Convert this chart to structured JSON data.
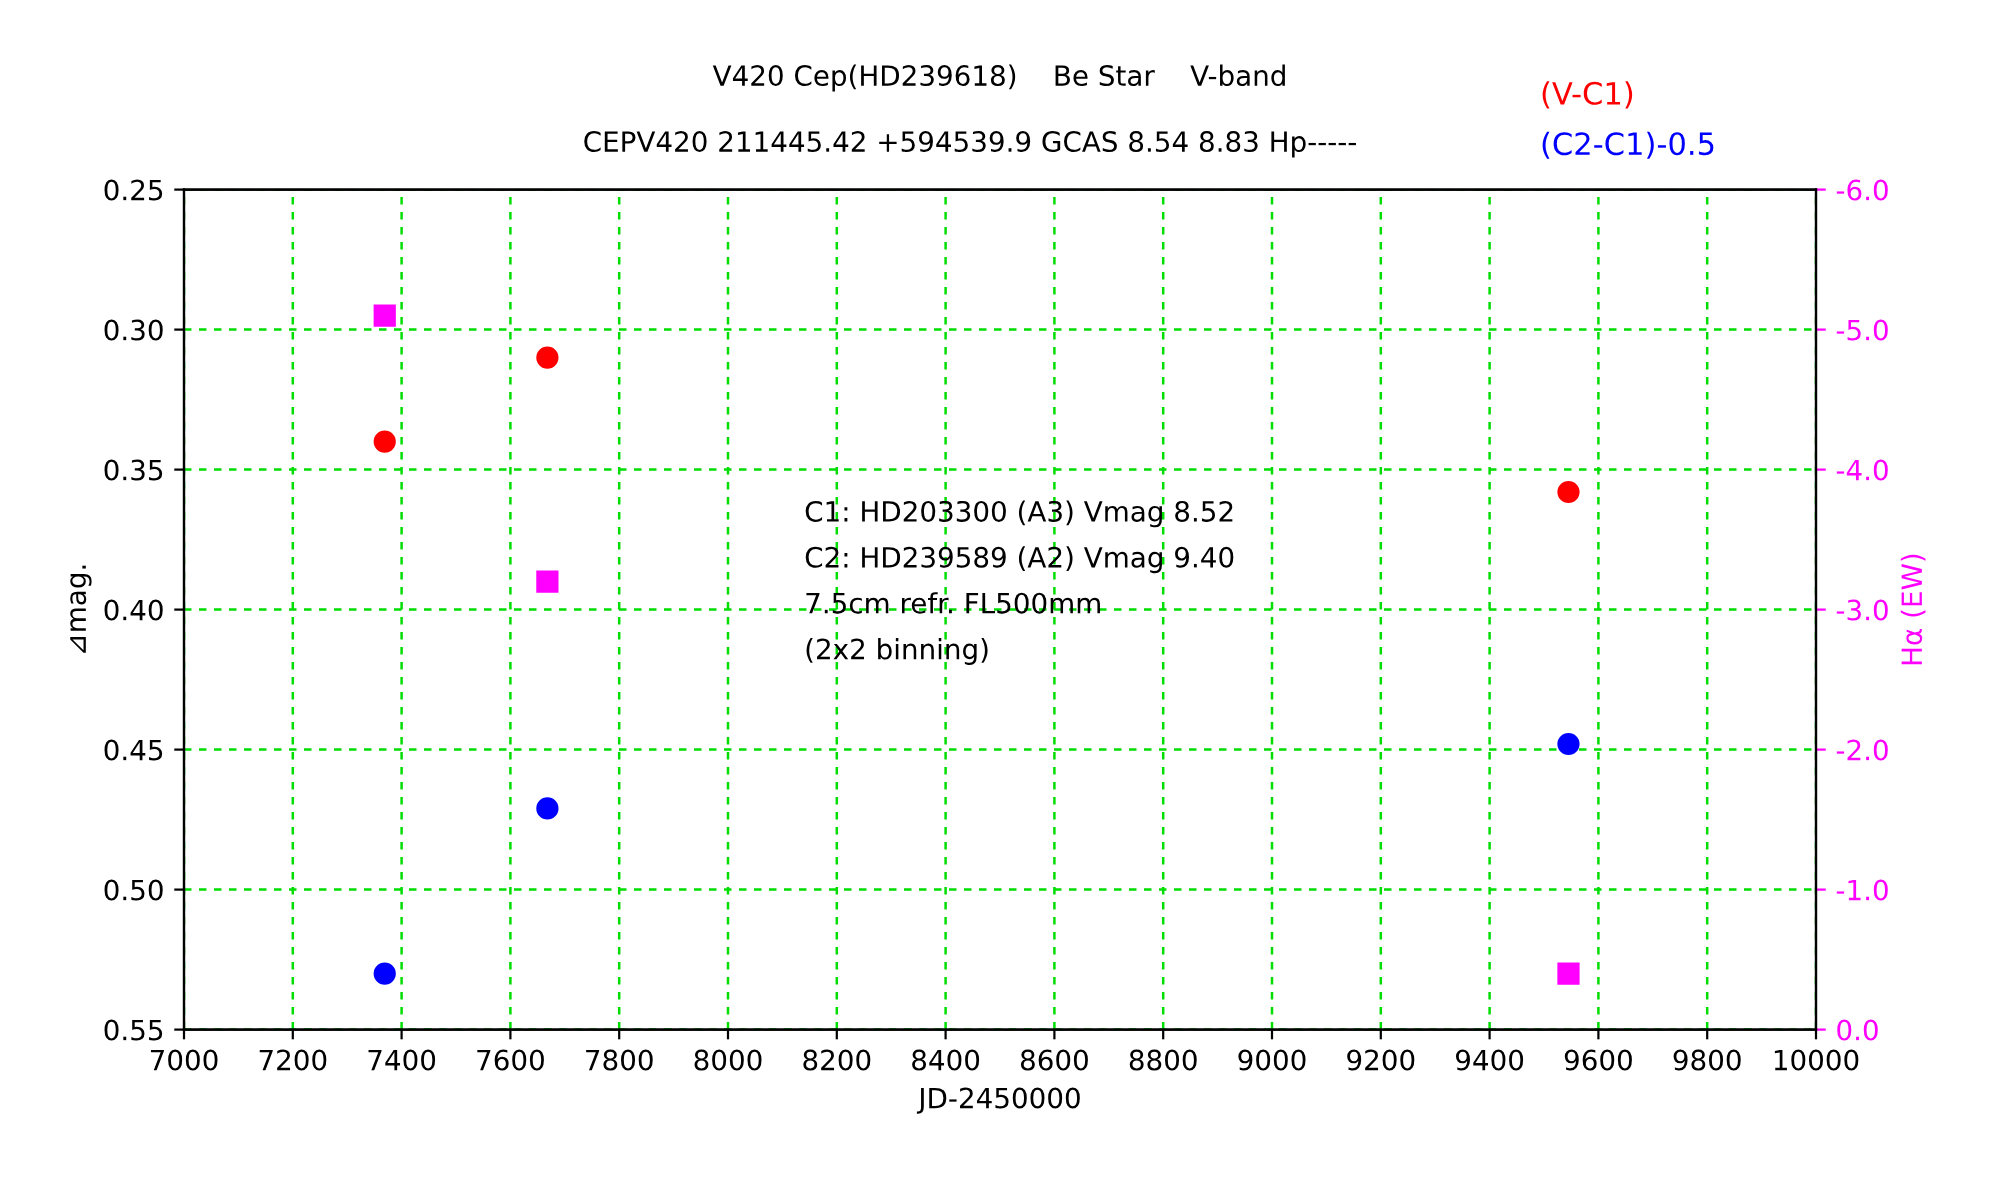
{
  "chart_data": {
    "type": "scatter",
    "title": "V420 Cep(HD239618)    Be Star    V-band",
    "subtitle": "CEPV420 211445.42 +594539.9 GCAS 8.54 8.83 Hp-----",
    "xlabel": "JD-2450000",
    "ylabel": "⊿mag.",
    "y2label": "Hα (EW)",
    "xlim": [
      7000,
      10000
    ],
    "xticks": [
      7000,
      7200,
      7400,
      7600,
      7800,
      8000,
      8200,
      8400,
      8600,
      8800,
      9000,
      9200,
      9400,
      9600,
      9800,
      10000
    ],
    "ylim": [
      0.55,
      0.25
    ],
    "yticks": [
      {
        "value": 0.25,
        "label": "0.25"
      },
      {
        "value": 0.3,
        "label": "0.30"
      },
      {
        "value": 0.35,
        "label": "0.35"
      },
      {
        "value": 0.4,
        "label": "0.40"
      },
      {
        "value": 0.45,
        "label": "0.45"
      },
      {
        "value": 0.5,
        "label": "0.50"
      },
      {
        "value": 0.55,
        "label": "0.55"
      }
    ],
    "y2lim": [
      0,
      -6
    ],
    "y2ticks": [
      {
        "value": -6,
        "label": "-6.0"
      },
      {
        "value": -5,
        "label": "-5.0"
      },
      {
        "value": -4,
        "label": "-4.0"
      },
      {
        "value": -3,
        "label": "-3.0"
      },
      {
        "value": -2,
        "label": "-2.0"
      },
      {
        "value": -1,
        "label": "-1.0"
      },
      {
        "value": 0,
        "label": "0.0"
      }
    ],
    "grid": true,
    "legend": "top right",
    "series": [
      {
        "name": "(V-C1)",
        "color": "#ff0000",
        "marker": "circle",
        "x": [
          7369,
          7668,
          9545
        ],
        "values": [
          0.34,
          0.31,
          0.358
        ],
        "errors": [
          0.002,
          0.002,
          0.003
        ]
      },
      {
        "name": "(C2-C1)-0.5",
        "color": "#0000ff",
        "marker": "circle",
        "x": [
          7369,
          7668,
          9545
        ],
        "values": [
          0.53,
          0.471,
          0.448
        ],
        "errors": [
          0.003,
          0.003,
          0.003
        ]
      },
      {
        "color": "#ff00ff",
        "marker": "square",
        "axis": "y2",
        "x": [
          7369,
          7668,
          9545
        ],
        "values": [
          -5.1,
          -3.2,
          -0.4
        ]
      }
    ],
    "annotations": [
      {
        "text": "C1: HD203300 (A3) Vmag 8.52\nC2: HD239589 (A2) Vmag 9.40\n7.5cm refr. FL500mm\n(2x2 binning)"
      }
    ]
  }
}
